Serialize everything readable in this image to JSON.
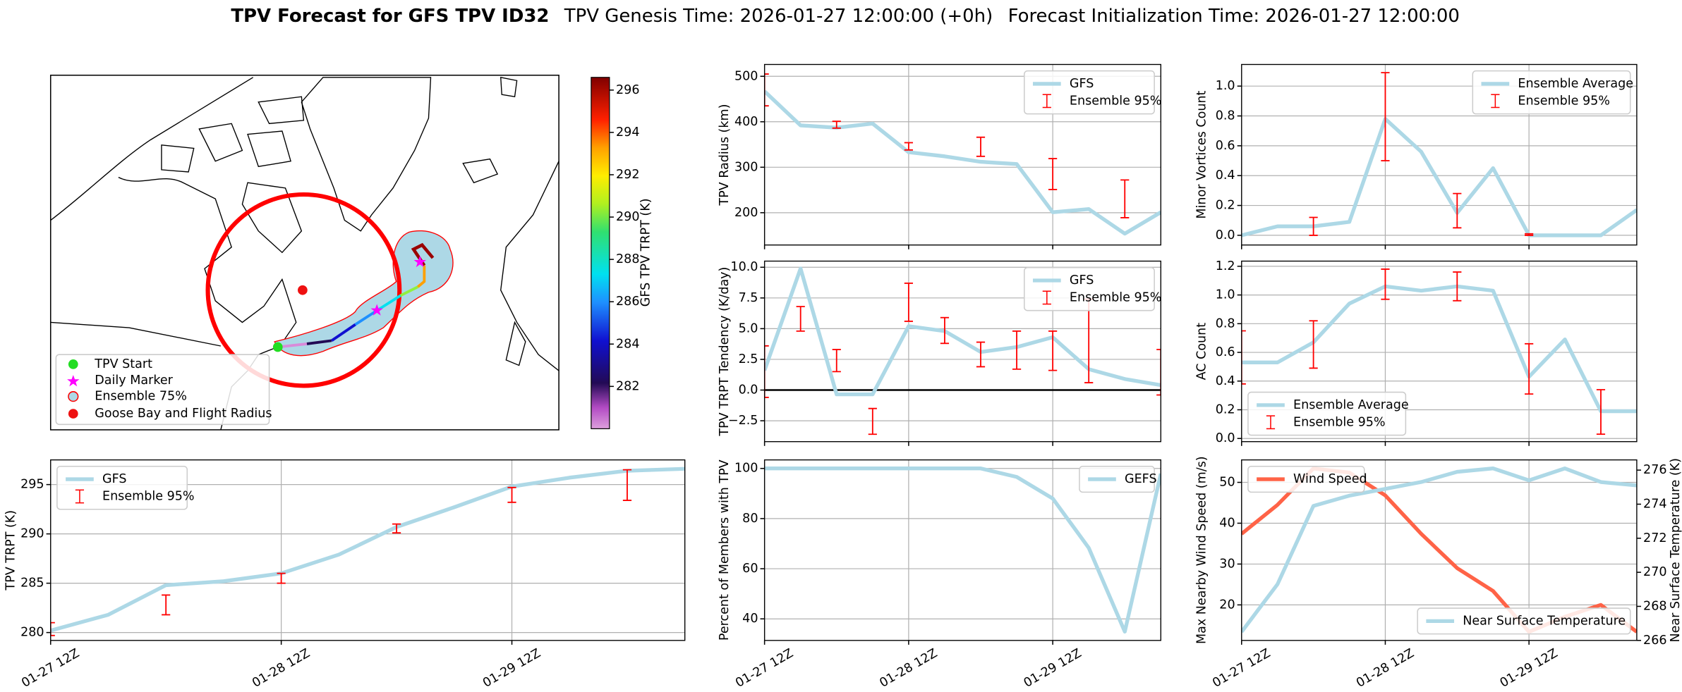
{
  "header": {
    "title": "TPV Forecast for GFS TPV ID32",
    "genesis": "TPV Genesis Time: 2026-01-27 12:00:00 (+0h)",
    "init": "Forecast Initialization Time: 2026-01-27 12:00:00"
  },
  "map": {
    "legend": [
      "TPV Start",
      "Daily Marker",
      "Ensemble 75%",
      "Goose Bay and Flight Radius"
    ],
    "colorbar": {
      "label": "GFS TPV TRPT (K)",
      "clim": [
        280,
        296.6
      ],
      "ticks": [
        282,
        284,
        286,
        288,
        290,
        292,
        294,
        296
      ]
    }
  },
  "chart_data": [
    {
      "type": "line",
      "ylabel": "TPV TRPT (K)",
      "x": [
        0,
        6,
        12,
        18,
        24,
        30,
        36,
        42,
        48,
        54,
        60,
        66
      ],
      "xlim": [
        0,
        66
      ],
      "xticks": [
        {
          "value": 0,
          "label": "01-27 12Z"
        },
        {
          "value": 24,
          "label": "01-28 12Z"
        },
        {
          "value": 48,
          "label": "01-29 12Z"
        }
      ],
      "ylim": [
        279.2,
        297.5
      ],
      "yticks": [
        280,
        285,
        290,
        295
      ],
      "grid": true,
      "legend": "upper left",
      "series": [
        {
          "name": "GFS",
          "color": "#add8e6",
          "values": [
            280.2,
            281.8,
            284.8,
            285.2,
            286.0,
            287.9,
            290.7,
            292.7,
            294.8,
            295.7,
            296.4,
            296.6
          ]
        }
      ],
      "ranges": {
        "name": "Ensemble 95%",
        "color": "#ff0000",
        "x": [
          0,
          12,
          24,
          36,
          48,
          60
        ],
        "low": [
          279.7,
          281.8,
          285.0,
          290.1,
          293.2,
          293.4
        ],
        "high": [
          281.0,
          283.8,
          286.0,
          291.0,
          294.7,
          296.5
        ]
      }
    },
    {
      "type": "line",
      "ylabel": "TPV Radius (km)",
      "x": [
        0,
        6,
        12,
        18,
        24,
        30,
        36,
        42,
        48,
        54,
        60,
        66
      ],
      "xlim": [
        0,
        66
      ],
      "xticks": [
        0,
        24,
        48
      ],
      "ylim": [
        129,
        526
      ],
      "yticks": [
        200,
        300,
        400,
        500
      ],
      "grid": true,
      "legend": "upper right",
      "series": [
        {
          "name": "GFS",
          "color": "#add8e6",
          "values": [
            467,
            392,
            387,
            396,
            333,
            324,
            312,
            307,
            201,
            208,
            154,
            201
          ]
        }
      ],
      "ranges": {
        "name": "Ensemble 95%",
        "color": "#ff0000",
        "x": [
          0,
          12,
          24,
          36,
          48,
          60
        ],
        "low": [
          435,
          386,
          338,
          324,
          251,
          189
        ],
        "high": [
          505,
          401,
          354,
          366,
          319,
          272
        ]
      }
    },
    {
      "type": "line",
      "ylabel": "TPV TRPT Tendency (K/day)",
      "x": [
        0,
        6,
        12,
        18,
        24,
        30,
        36,
        42,
        48,
        54,
        60,
        66
      ],
      "xlim": [
        0,
        66
      ],
      "xticks": [
        0,
        24,
        48
      ],
      "ylim": [
        -4.2,
        10.5
      ],
      "yticks": [
        {
          "value": -2.5,
          "label": "−2.5"
        },
        {
          "value": 0,
          "label": "0.0"
        },
        2.5,
        {
          "value": 5,
          "label": "5.0"
        },
        7.5,
        {
          "value": 10,
          "label": "10.0"
        }
      ],
      "grid": true,
      "legend": "upper right",
      "hline": {
        "value": 0,
        "color": "#000000"
      },
      "series": [
        {
          "name": "GFS",
          "color": "#add8e6",
          "values": [
            1.6,
            9.9,
            -0.35,
            -0.35,
            5.2,
            4.8,
            3.1,
            3.5,
            4.3,
            1.7,
            0.9,
            0.4
          ]
        }
      ],
      "ranges": {
        "name": "Ensemble 95%",
        "color": "#ff0000",
        "x": [
          0,
          6,
          12,
          18,
          24,
          30,
          36,
          42,
          48,
          54,
          66
        ],
        "low": [
          -0.6,
          4.8,
          1.5,
          -3.6,
          5.6,
          3.8,
          1.9,
          1.7,
          1.6,
          0.6,
          -0.4
        ],
        "high": [
          3.6,
          6.8,
          3.3,
          -1.5,
          8.7,
          5.9,
          3.9,
          4.8,
          4.8,
          7.4,
          3.3
        ]
      }
    },
    {
      "type": "line",
      "ylabel": "Minor Vortices Count",
      "x": [
        0,
        6,
        12,
        18,
        24,
        30,
        36,
        42,
        48,
        54,
        60,
        66
      ],
      "xlim": [
        0,
        66
      ],
      "xticks": [
        0,
        24,
        48
      ],
      "ylim": [
        -0.065,
        1.145
      ],
      "yticks": [
        {
          "value": 0,
          "label": "0.0"
        },
        0.2,
        0.4,
        0.6,
        0.8,
        {
          "value": 1,
          "label": "1.0"
        }
      ],
      "grid": true,
      "legend": "upper right",
      "series": [
        {
          "name": "Ensemble Average",
          "color": "#add8e6",
          "values": [
            0,
            0.06,
            0.06,
            0.09,
            0.78,
            0.56,
            0.15,
            0.45,
            0,
            0,
            0,
            0.17
          ]
        }
      ],
      "ranges": {
        "name": "Ensemble 95%",
        "color": "#ff0000",
        "x": [
          12,
          24,
          36,
          48
        ],
        "low": [
          0,
          0.5,
          0.05,
          0
        ],
        "high": [
          0.12,
          1.09,
          0.28,
          0.01
        ]
      }
    },
    {
      "type": "line",
      "ylabel": "AC Count",
      "x": [
        0,
        6,
        12,
        18,
        24,
        30,
        36,
        42,
        48,
        54,
        60,
        66
      ],
      "xlim": [
        0,
        66
      ],
      "xticks": [
        0,
        24,
        48
      ],
      "ylim": [
        -0.022,
        1.236
      ],
      "yticks": [
        {
          "value": 0,
          "label": "0.0"
        },
        0.2,
        0.4,
        0.6,
        0.8,
        {
          "value": 1,
          "label": "1.0"
        },
        1.2
      ],
      "grid": true,
      "legend": "lower left",
      "series": [
        {
          "name": "Ensemble Average",
          "color": "#add8e6",
          "values": [
            0.53,
            0.53,
            0.67,
            0.94,
            1.06,
            1.03,
            1.06,
            1.03,
            0.43,
            0.69,
            0.19,
            0.19
          ]
        }
      ],
      "ranges": {
        "name": "Ensemble 95%",
        "color": "#ff0000",
        "x": [
          0,
          12,
          24,
          36,
          48,
          60
        ],
        "low": [
          0.38,
          0.49,
          0.97,
          0.96,
          0.31,
          0.03
        ],
        "high": [
          0.75,
          0.82,
          1.18,
          1.16,
          0.66,
          0.34
        ]
      }
    },
    {
      "type": "line",
      "ylabel": "Percent of Members with TPV",
      "x": [
        0,
        6,
        12,
        18,
        24,
        30,
        36,
        42,
        48,
        54,
        60,
        66
      ],
      "xlim": [
        0,
        66
      ],
      "xticks": [
        {
          "value": 0,
          "label": "01-27 12Z"
        },
        {
          "value": 24,
          "label": "01-28 12Z"
        },
        {
          "value": 48,
          "label": "01-29 12Z"
        }
      ],
      "ylim": [
        31.4,
        103.4
      ],
      "yticks": [
        40,
        60,
        80,
        100
      ],
      "grid": true,
      "legend": "upper right",
      "series": [
        {
          "name": "GEFS",
          "color": "#add8e6",
          "values": [
            100,
            100,
            100,
            100,
            100,
            100,
            100,
            96.6,
            88,
            68.3,
            34.9,
            97.9
          ]
        }
      ]
    },
    {
      "type": "line",
      "ylabel": "Max Nearby Wind Speed (m/s)",
      "ycolor": "#ff6347",
      "y2label": "Near Surface Temperature (K)",
      "y2color": "#4169e1",
      "x": [
        0,
        6,
        12,
        18,
        24,
        30,
        36,
        42,
        48,
        54,
        60,
        66
      ],
      "xlim": [
        0,
        66
      ],
      "xticks": [
        {
          "value": 0,
          "label": "01-27 12Z"
        },
        {
          "value": 24,
          "label": "01-28 12Z"
        },
        {
          "value": 48,
          "label": "01-29 12Z"
        }
      ],
      "ylim": [
        11.3,
        55.5
      ],
      "yticks": [
        20,
        30,
        40,
        50
      ],
      "y2lim": [
        266,
        276.6
      ],
      "y2ticks": [
        266,
        268,
        270,
        272,
        274,
        276
      ],
      "grid": true,
      "series": [
        {
          "name": "Wind Speed",
          "color": "#ff6347",
          "legend": "upper left",
          "values": [
            37.4,
            44.5,
            53.4,
            52.4,
            46.8,
            37.4,
            29,
            23.4,
            13.4,
            17.1,
            20,
            13.4
          ]
        },
        {
          "name": "Near Surface Temperature",
          "color": "#add8e6",
          "axis": "y2",
          "legend": "lower right",
          "values": [
            266.5,
            269.3,
            273.9,
            274.5,
            274.9,
            275.3,
            275.9,
            276.1,
            275.4,
            276.1,
            275.3,
            275.1
          ]
        }
      ]
    }
  ]
}
